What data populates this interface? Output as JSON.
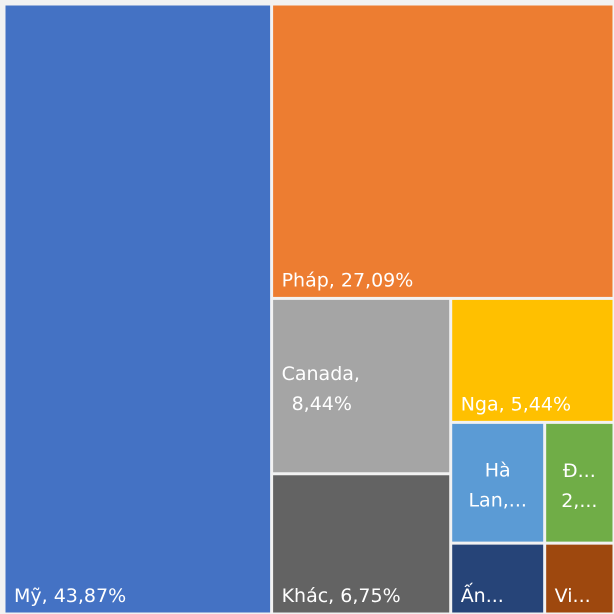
{
  "chart_data": {
    "type": "treemap",
    "labels": [
      [
        "Mỹ, 43,87%"
      ],
      [
        "Pháp, 27,09%"
      ],
      [
        "Canada,",
        "8,44%"
      ],
      [
        "Khác, 6,75%"
      ],
      [
        "Nga, 5,44%"
      ],
      [
        "Hà",
        "Lan,..."
      ],
      [
        "Đ...",
        "2,..."
      ],
      [
        "Ấn..."
      ],
      [
        "Vi..."
      ]
    ],
    "values": [
      43.87,
      27.09,
      8.44,
      6.75,
      5.44,
      3.05,
      2.25,
      1.79,
      1.32
    ],
    "colors": [
      "#4472c4",
      "#ed7d31",
      "#a5a5a5",
      "#636363",
      "#ffc000",
      "#5b9bd5",
      "#70ad47",
      "#264478",
      "#9e480e"
    ]
  }
}
